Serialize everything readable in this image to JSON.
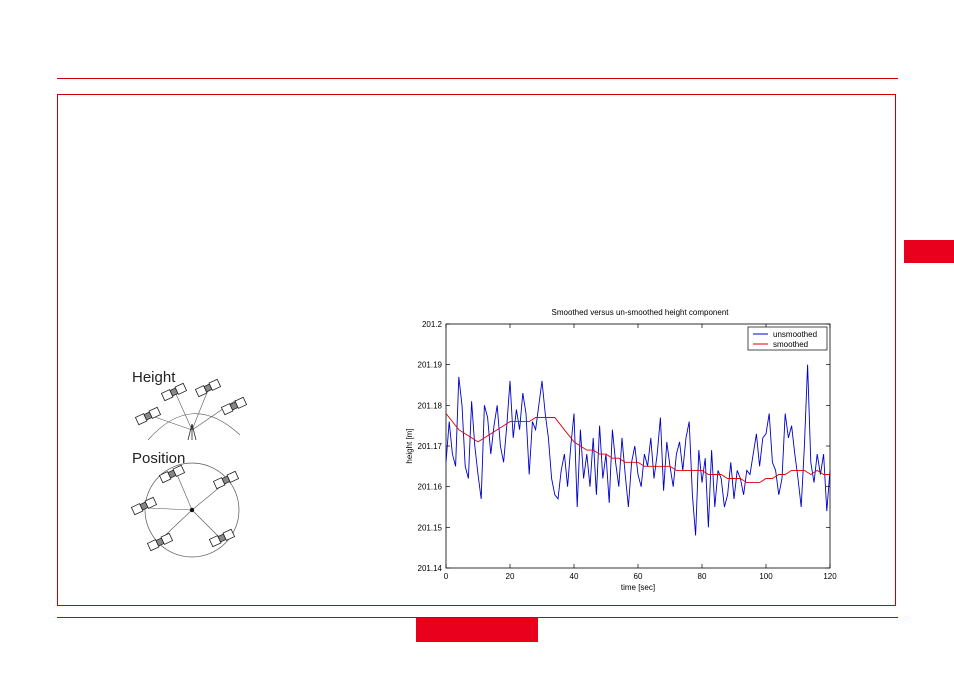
{
  "diagram": {
    "height_label": "Height",
    "position_label": "Position"
  },
  "colors": {
    "accent": "#cc0000",
    "tab": "#e8001c"
  },
  "chart_data": {
    "type": "line",
    "title": "Smoothed versus un-smoothed height component",
    "xlabel": "time [sec]",
    "ylabel": "height [m]",
    "xlim": [
      0,
      120
    ],
    "ylim": [
      201.14,
      201.2
    ],
    "xticks": [
      "0",
      "20",
      "40",
      "60",
      "80",
      "100",
      "120"
    ],
    "yticks": [
      "201.14",
      "201.15",
      "201.16",
      "201.17",
      "201.18",
      "201.19",
      "201.2"
    ],
    "legend_position": "top-right",
    "series": [
      {
        "name": "unsmoothed",
        "color": "#0000cc",
        "x": [
          0,
          1,
          2,
          3,
          4,
          5,
          6,
          7,
          8,
          9,
          10,
          11,
          12,
          13,
          14,
          15,
          16,
          17,
          18,
          19,
          20,
          21,
          22,
          23,
          24,
          25,
          26,
          27,
          28,
          29,
          30,
          31,
          32,
          33,
          34,
          35,
          36,
          37,
          38,
          39,
          40,
          41,
          42,
          43,
          44,
          45,
          46,
          47,
          48,
          49,
          50,
          51,
          52,
          53,
          54,
          55,
          56,
          57,
          58,
          59,
          60,
          61,
          62,
          63,
          64,
          65,
          66,
          67,
          68,
          69,
          70,
          71,
          72,
          73,
          74,
          75,
          76,
          77,
          78,
          79,
          80,
          81,
          82,
          83,
          84,
          85,
          86,
          87,
          88,
          89,
          90,
          91,
          92,
          93,
          94,
          95,
          96,
          97,
          98,
          99,
          100,
          101,
          102,
          103,
          104,
          105,
          106,
          107,
          108,
          109,
          110,
          111,
          112,
          113,
          114,
          115,
          116,
          117,
          118,
          119,
          120
        ],
        "y": [
          201.166,
          201.176,
          201.168,
          201.165,
          201.187,
          201.18,
          201.165,
          201.162,
          201.181,
          201.17,
          201.163,
          201.157,
          201.18,
          201.177,
          201.168,
          201.175,
          201.18,
          201.17,
          201.166,
          201.175,
          201.186,
          201.172,
          201.179,
          201.174,
          201.183,
          201.178,
          201.163,
          201.176,
          201.174,
          201.18,
          201.186,
          201.178,
          201.172,
          201.162,
          201.158,
          201.157,
          201.164,
          201.168,
          201.16,
          201.17,
          201.178,
          201.155,
          201.174,
          201.162,
          201.168,
          201.16,
          201.172,
          201.158,
          201.175,
          201.162,
          201.168,
          201.156,
          201.174,
          201.166,
          201.16,
          201.172,
          201.163,
          201.155,
          201.166,
          201.17,
          201.163,
          201.16,
          201.168,
          201.165,
          201.172,
          201.162,
          201.168,
          201.177,
          201.159,
          201.171,
          201.165,
          201.16,
          201.168,
          201.171,
          201.164,
          201.172,
          201.176,
          201.158,
          201.148,
          201.169,
          201.161,
          201.167,
          201.15,
          201.169,
          201.155,
          201.164,
          201.162,
          201.155,
          201.158,
          201.166,
          201.157,
          201.164,
          201.162,
          201.158,
          201.164,
          201.163,
          201.168,
          201.173,
          201.165,
          201.172,
          201.173,
          201.178,
          201.166,
          201.164,
          201.158,
          201.162,
          201.178,
          201.172,
          201.175,
          201.168,
          201.162,
          201.155,
          201.17,
          201.19,
          201.166,
          201.161,
          201.168,
          201.163,
          201.168,
          201.154,
          201.164
        ],
        "_note": ""
      },
      {
        "name": "smoothed",
        "color": "#dd0000",
        "x": [
          0,
          2,
          4,
          6,
          8,
          10,
          12,
          14,
          16,
          18,
          20,
          22,
          24,
          26,
          28,
          30,
          32,
          34,
          36,
          38,
          40,
          42,
          44,
          46,
          48,
          50,
          52,
          54,
          56,
          58,
          60,
          62,
          64,
          66,
          68,
          70,
          72,
          74,
          76,
          78,
          80,
          82,
          84,
          86,
          88,
          90,
          92,
          94,
          96,
          98,
          100,
          102,
          104,
          106,
          108,
          110,
          112,
          114,
          116,
          118,
          120
        ],
        "y": [
          201.178,
          201.176,
          201.174,
          201.173,
          201.172,
          201.171,
          201.172,
          201.173,
          201.174,
          201.175,
          201.176,
          201.176,
          201.176,
          201.176,
          201.177,
          201.177,
          201.177,
          201.177,
          201.175,
          201.173,
          201.171,
          201.17,
          201.169,
          201.169,
          201.168,
          201.168,
          201.167,
          201.167,
          201.166,
          201.166,
          201.166,
          201.165,
          201.165,
          201.165,
          201.165,
          201.165,
          201.164,
          201.164,
          201.164,
          201.164,
          201.164,
          201.163,
          201.163,
          201.163,
          201.162,
          201.162,
          201.162,
          201.161,
          201.161,
          201.161,
          201.162,
          201.162,
          201.163,
          201.163,
          201.164,
          201.164,
          201.164,
          201.163,
          201.164,
          201.163,
          201.163
        ]
      }
    ]
  }
}
